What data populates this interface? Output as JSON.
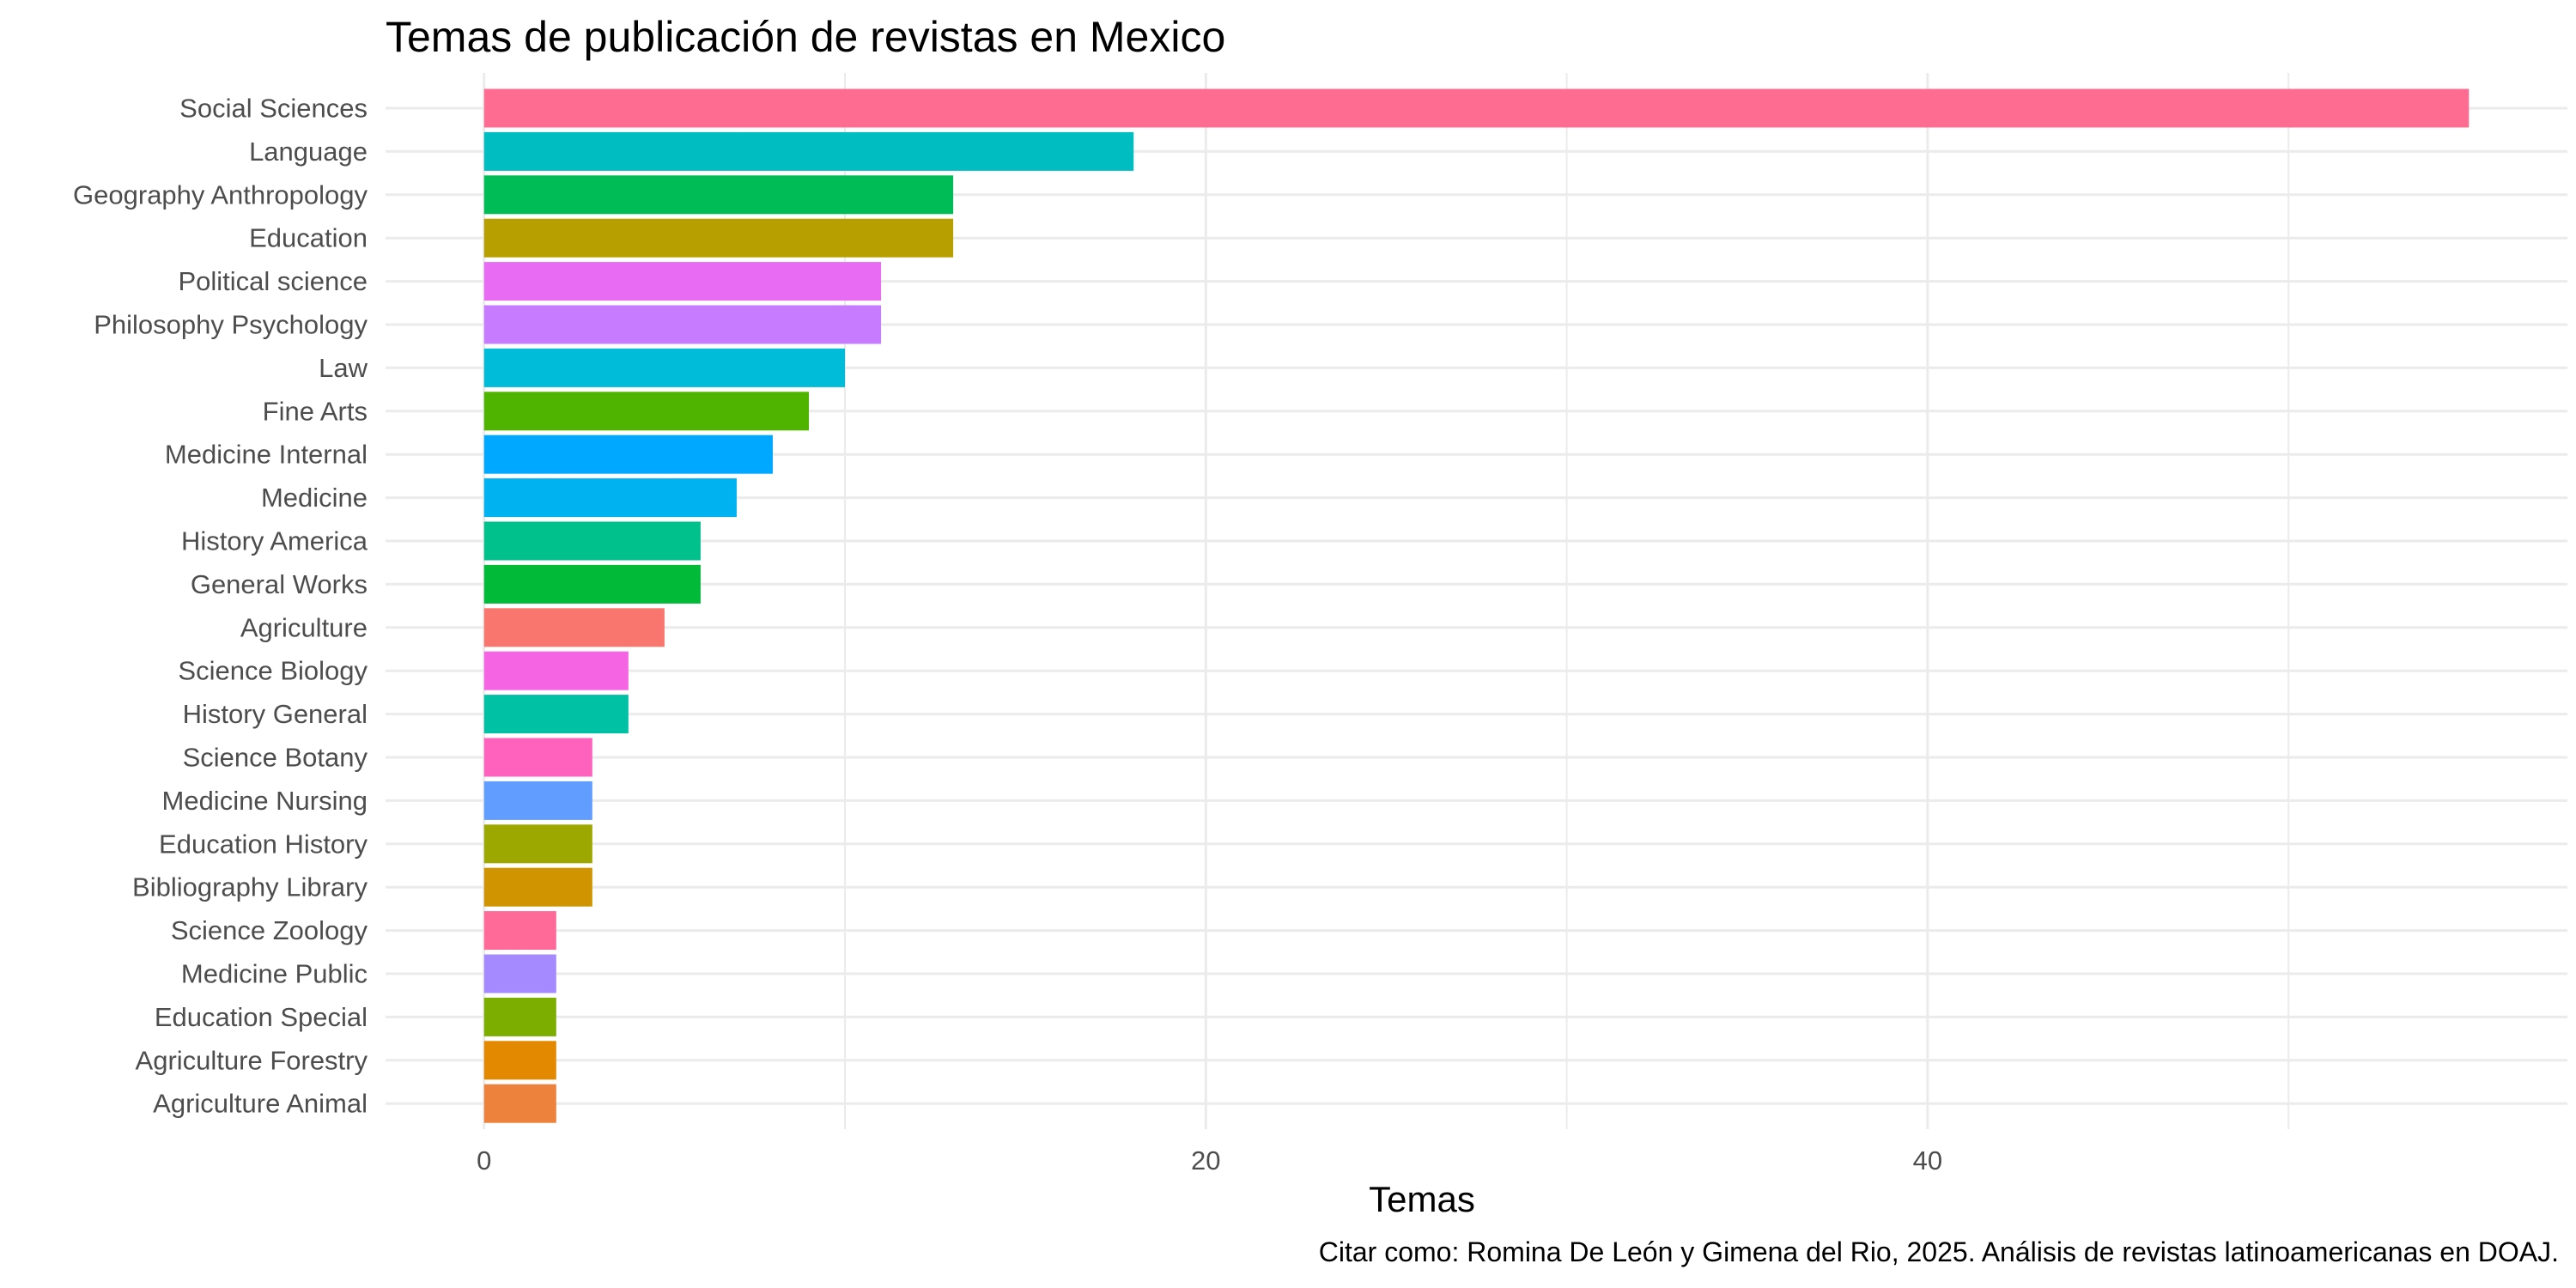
{
  "chart_data": {
    "type": "bar",
    "orientation": "horizontal",
    "title": "Temas de publicación de revistas en Mexico",
    "xlabel": "Temas",
    "ylabel": "",
    "caption": "Citar como: Romina De León y Gimena del Rio, 2025. Análisis de revistas latinoamericanas en DOAJ.",
    "xlim": [
      -2.73,
      57.73
    ],
    "x_ticks": [
      0,
      20,
      40
    ],
    "x_tick_labels": [
      "0",
      "20",
      "40"
    ],
    "grid": true,
    "legend": "none",
    "categories": [
      "Social Sciences",
      "Language",
      "Geography Anthropology",
      "Education",
      "Political science",
      "Philosophy Psychology",
      "Law",
      "Fine Arts",
      "Medicine Internal",
      "Medicine",
      "History America",
      "General Works",
      "Agriculture",
      "Science Biology",
      "History General",
      "Science Botany",
      "Medicine Nursing",
      "Education History",
      "Bibliography Library",
      "Science Zoology",
      "Medicine Public",
      "Education Special",
      "Agriculture Forestry",
      "Agriculture Animal"
    ],
    "values": [
      55,
      18,
      13,
      13,
      11,
      11,
      10,
      9,
      8,
      7,
      6,
      6,
      5,
      4,
      4,
      3,
      3,
      3,
      3,
      2,
      2,
      2,
      2,
      2
    ],
    "colors": [
      "#FF6C91",
      "#00BDC2",
      "#00BC56",
      "#B79F00",
      "#E76BF3",
      "#C77CFF",
      "#00BCD8",
      "#4FB400",
      "#00A9FF",
      "#00B3F0",
      "#00C08B",
      "#00BA38",
      "#F8766D",
      "#F564E3",
      "#00C1A3",
      "#FF62BC",
      "#619CFF",
      "#9CA700",
      "#D09400",
      "#FF6A98",
      "#A58AFF",
      "#7CAE00",
      "#E38900",
      "#EC823C"
    ]
  }
}
